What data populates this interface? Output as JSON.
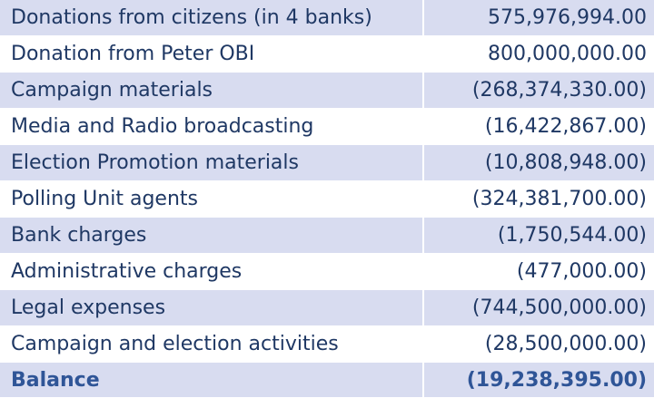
{
  "statement": {
    "rows": [
      {
        "label": "Donations from citizens (in 4 banks)",
        "amount": "575,976,994.00"
      },
      {
        "label": "Donation from Peter OBI",
        "amount": "800,000,000.00"
      },
      {
        "label": "Campaign materials",
        "amount": "(268,374,330.00)"
      },
      {
        "label": "Media and Radio broadcasting",
        "amount": "(16,422,867.00)"
      },
      {
        "label": "Election Promotion materials",
        "amount": "(10,808,948.00)"
      },
      {
        "label": "Polling Unit agents",
        "amount": "(324,381,700.00)"
      },
      {
        "label": "Bank charges",
        "amount": "(1,750,544.00)"
      },
      {
        "label": "Administrative charges",
        "amount": "(477,000.00)"
      },
      {
        "label": "Legal expenses",
        "amount": "(744,500,000.00)"
      },
      {
        "label": "Campaign and election activities",
        "amount": "(28,500,000.00)"
      }
    ],
    "balance": {
      "label": "Balance",
      "amount": "(19,238,395.00)"
    }
  },
  "colors": {
    "shaded_row": "#d8dcf0",
    "text": "#1f3864",
    "balance_text": "#2f5597"
  }
}
